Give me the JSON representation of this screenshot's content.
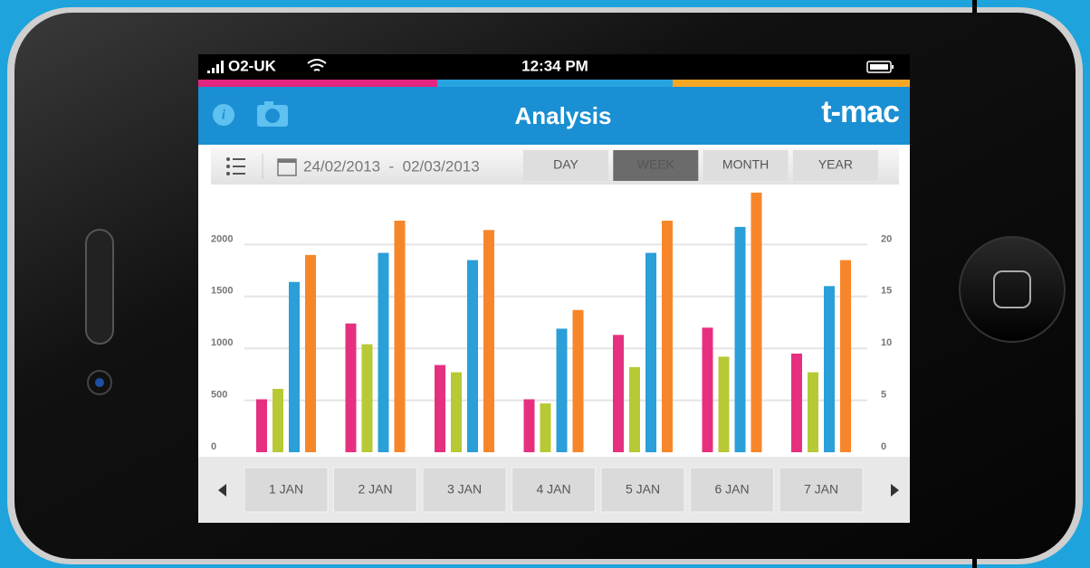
{
  "status_bar": {
    "carrier": "O2-UK",
    "time": "12:34 PM"
  },
  "header": {
    "title": "Analysis",
    "logo": "t-mac"
  },
  "toolbar": {
    "date_range": "24/02/2013  -  02/03/2013",
    "periods": [
      "DAY",
      "WEEK",
      "MONTH",
      "YEAR"
    ]
  },
  "chart_data": {
    "type": "bar",
    "categories": [
      "1 JAN",
      "2 JAN",
      "3 JAN",
      "4 JAN",
      "5 JAN",
      "6 JAN",
      "7 JAN"
    ],
    "series": [
      {
        "color": "#e6307f",
        "values": [
          510,
          1240,
          840,
          510,
          1130,
          1200,
          950
        ]
      },
      {
        "color": "#b7c934",
        "values": [
          610,
          1040,
          770,
          470,
          820,
          920,
          770
        ]
      },
      {
        "color": "#2a9fd8",
        "values": [
          1640,
          1920,
          1850,
          1190,
          1920,
          2170,
          1600
        ]
      },
      {
        "color": "#f7862a",
        "values": [
          1900,
          2230,
          2140,
          1370,
          2230,
          2500,
          1850
        ]
      }
    ],
    "ylim": [
      0,
      2500
    ],
    "yticks": [
      0,
      500,
      1000,
      1500,
      2000
    ],
    "y2lim": [
      0,
      25
    ],
    "y2ticks": [
      0,
      5,
      10,
      15,
      20
    ],
    "grid": true
  }
}
